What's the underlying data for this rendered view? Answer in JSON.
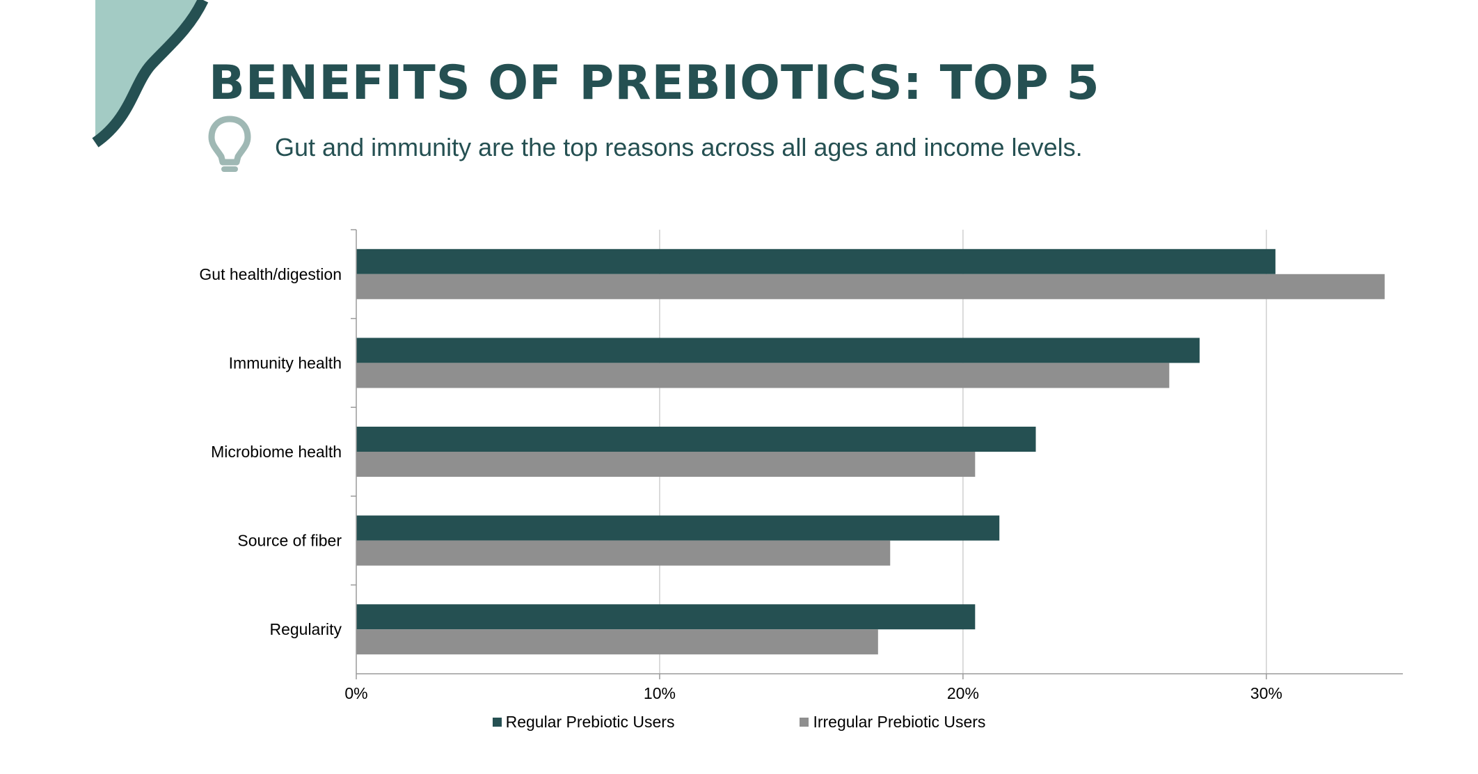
{
  "header": {
    "title": "BENEFITS OF PREBIOTICS: TOP 5",
    "subtitle": "Gut and immunity are the top reasons across all ages and income levels."
  },
  "icons": {
    "decoration": "wave-shape",
    "tip": "lightbulb-icon"
  },
  "colors": {
    "brand_dark": "#255052",
    "brand_light": "#a3cbc4",
    "series_regular": "#255052",
    "series_irregular": "#8f8f8f",
    "bulb": "#9fb8b4"
  },
  "chart_data": {
    "type": "bar",
    "orientation": "horizontal",
    "title": "",
    "xlabel": "",
    "ylabel": "",
    "categories": [
      "Gut health/digestion",
      "Immunity health",
      "Microbiome health",
      "Source of fiber",
      "Regularity"
    ],
    "series": [
      {
        "name": "Regular Prebiotic Users",
        "color": "#255052",
        "values": [
          30.3,
          27.8,
          22.4,
          21.2,
          20.4
        ]
      },
      {
        "name": "Irregular Prebiotic Users",
        "color": "#8f8f8f",
        "values": [
          33.9,
          26.8,
          20.4,
          17.6,
          17.2
        ]
      }
    ],
    "xlim": [
      0,
      34.5
    ],
    "xticks": [
      0,
      10,
      20,
      30
    ],
    "xtick_labels": [
      "0%",
      "10%",
      "20%",
      "30%"
    ],
    "grid": true,
    "legend_position": "bottom"
  }
}
